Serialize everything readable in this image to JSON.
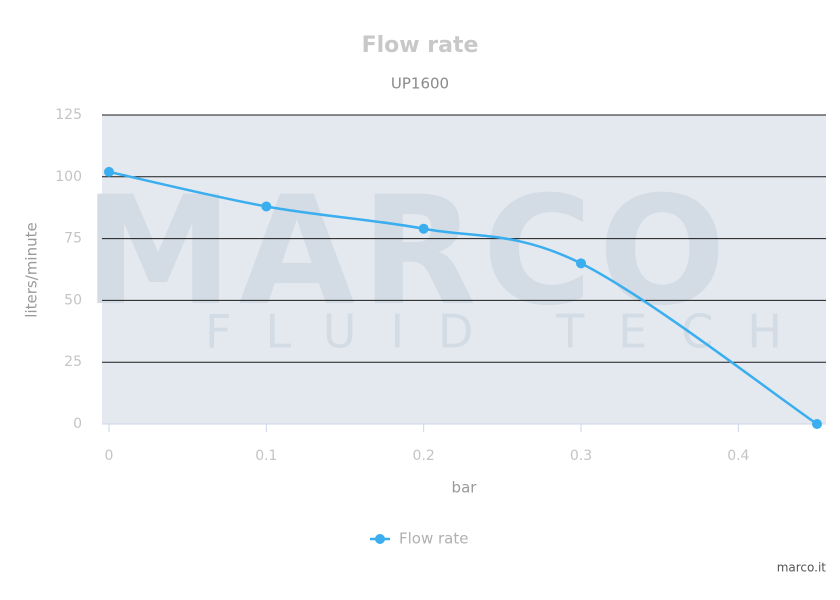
{
  "chart_data": {
    "type": "line",
    "title": "Flow rate",
    "subtitle": "UP1600",
    "x_label": "bar",
    "y_label": "liters/minute",
    "x": [
      0,
      0.1,
      0.2,
      0.3,
      0.45
    ],
    "series": [
      {
        "name": "Flow rate",
        "color": "#3aaeef",
        "values": [
          102,
          88,
          79,
          65,
          0
        ]
      }
    ],
    "xlim": [
      0,
      0.45
    ],
    "xticks": [
      0,
      0.1,
      0.2,
      0.3,
      0.4
    ],
    "ylim": [
      0,
      125
    ],
    "yticks": [
      0,
      25,
      50,
      75,
      100,
      125
    ],
    "grid": true,
    "legend": "bottom",
    "watermark": "MARCO",
    "watermark_subtitle": "FLUID TECH",
    "credit": "marco.it"
  }
}
